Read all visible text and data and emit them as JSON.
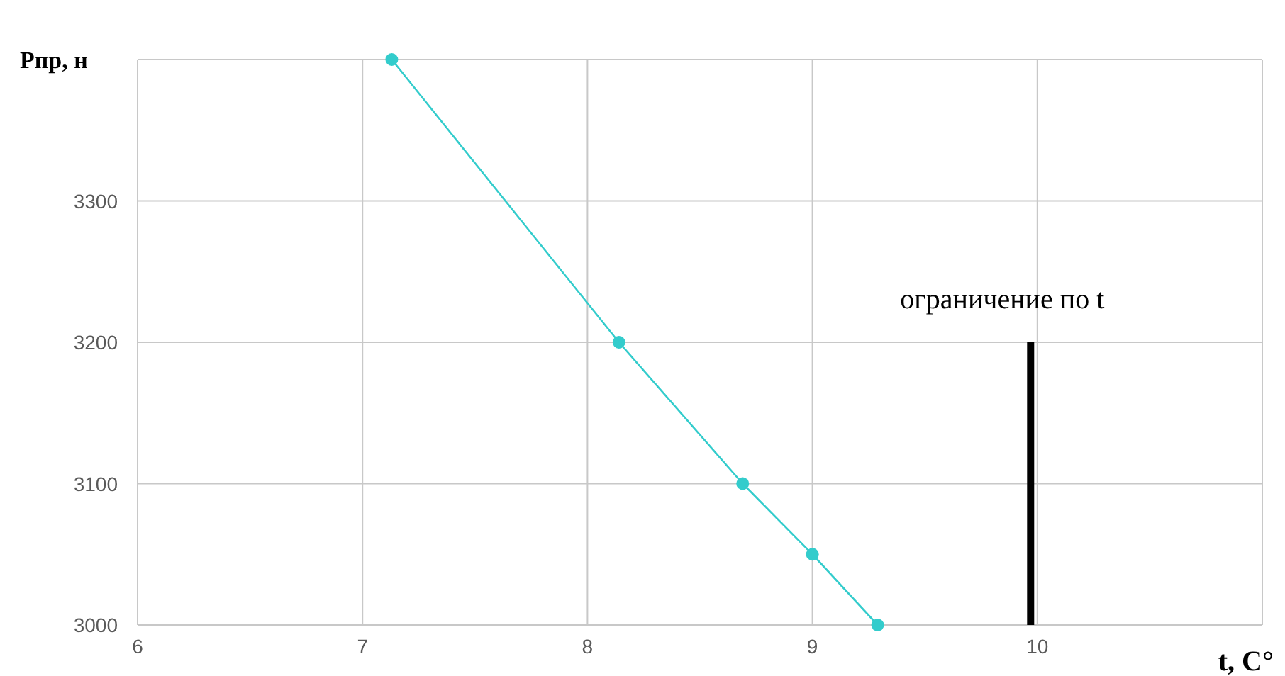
{
  "chart_data": {
    "type": "line",
    "xlabel": "t, C°",
    "ylabel": "Рпр, н",
    "xlim": [
      6,
      11
    ],
    "xticks": [
      6,
      7,
      8,
      9,
      10,
      {
        "value": 11,
        "label": null
      }
    ],
    "ylim": [
      3000,
      3400
    ],
    "yticks": [
      3000,
      3100,
      3200,
      3300,
      {
        "value": 3400,
        "label": null
      }
    ],
    "grid": true,
    "marker": "circle",
    "line_style": "solid",
    "series": [
      {
        "color": "#33cccc",
        "x": [
          7.13,
          8.14,
          8.69,
          9.0,
          9.29
        ],
        "values": [
          3400,
          3200,
          3100,
          3050,
          3000
        ]
      },
      {
        "color": "#000000",
        "marker": "none",
        "x": [
          9.97,
          9.97
        ],
        "values": [
          3000,
          3200
        ]
      }
    ],
    "annotations": [
      "ограничение по t"
    ]
  }
}
